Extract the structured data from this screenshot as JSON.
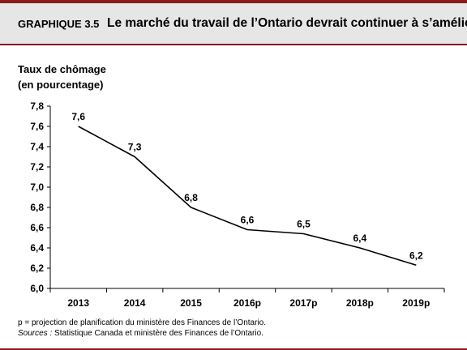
{
  "header": {
    "label": "GRAPHIQUE 3.5",
    "title": "Le marché du travail de l’Ontario devrait continuer à s’améliorer"
  },
  "chart_data": {
    "type": "line",
    "ylabel_lines": [
      "Taux de chômage",
      "(en pourcentage)"
    ],
    "ylim": [
      6.0,
      7.8
    ],
    "yticks": [
      "6,0",
      "6,2",
      "6,4",
      "6,6",
      "6,8",
      "7,0",
      "7,2",
      "7,4",
      "7,6",
      "7,8"
    ],
    "categories": [
      "2013",
      "2014",
      "2015",
      "2016p",
      "2017p",
      "2018p",
      "2019p"
    ],
    "values": [
      7.6,
      7.3,
      6.8,
      6.58,
      6.54,
      6.4,
      6.23
    ],
    "data_labels": [
      "7,6",
      "7,3",
      "6,8",
      "6,6",
      "6,5",
      "6,4",
      "6,2"
    ],
    "grid": false,
    "line_color": "#000000"
  },
  "notes": {
    "projection": "p = projection de planification du ministère des Finances de l’Ontario.",
    "sources_label": "Sources :",
    "sources_text": " Statistique  Canada et ministère des Finances de l’Ontario."
  },
  "colors": {
    "frame": "#8b1a1a",
    "header_bg": "#e6e6e6"
  }
}
